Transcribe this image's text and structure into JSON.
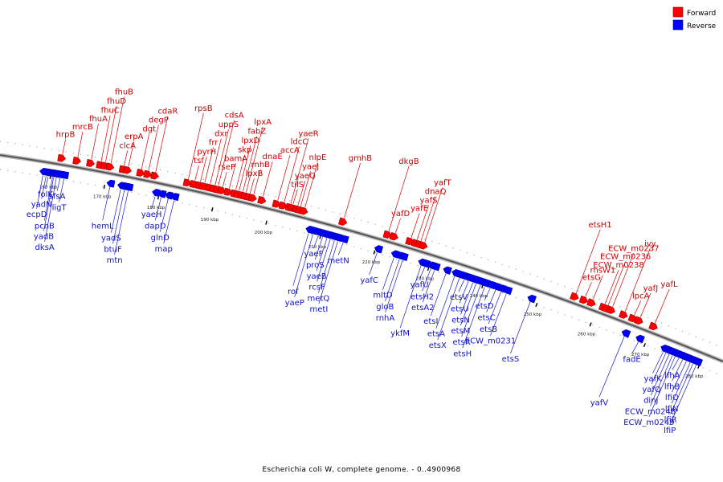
{
  "legend": {
    "forward_label": "Forward",
    "reverse_label": "Reverse",
    "forward_color": "#ff0000",
    "reverse_color": "#0000ff"
  },
  "caption": "Escherichia coli W, complete genome. - 0..4900968",
  "scale_unit": "kbp",
  "scale_ticks": [
    160,
    170,
    180,
    190,
    200,
    210,
    220,
    230,
    240,
    250,
    260,
    270,
    280
  ],
  "forward_genes": [
    {
      "name": "hrpB",
      "kbp": 161.5
    },
    {
      "name": "mrcB",
      "kbp": 164.3
    },
    {
      "name": "fhuA",
      "kbp": 166.8
    },
    {
      "name": "fhuC",
      "kbp": 168.6
    },
    {
      "name": "fhuD",
      "kbp": 169.4
    },
    {
      "name": "fhuB",
      "kbp": 170.4
    },
    {
      "name": "clcA",
      "kbp": 172.8
    },
    {
      "name": "erpA",
      "kbp": 173.6
    },
    {
      "name": "dgt",
      "kbp": 176.0
    },
    {
      "name": "degP",
      "kbp": 177.3
    },
    {
      "name": "cdaR",
      "kbp": 178.6
    },
    {
      "name": "rpsB",
      "kbp": 184.6
    },
    {
      "name": "tsf",
      "kbp": 185.8
    },
    {
      "name": "pyrH",
      "kbp": 186.8
    },
    {
      "name": "frr",
      "kbp": 187.6
    },
    {
      "name": "dxr",
      "kbp": 188.6
    },
    {
      "name": "uppS",
      "kbp": 189.5
    },
    {
      "name": "cdsA",
      "kbp": 190.1
    },
    {
      "name": "rseP",
      "kbp": 190.9
    },
    {
      "name": "bamA",
      "kbp": 192.1
    },
    {
      "name": "skp",
      "kbp": 193.3
    },
    {
      "name": "lpxD",
      "kbp": 193.9
    },
    {
      "name": "fabZ",
      "kbp": 194.6
    },
    {
      "name": "lpxA",
      "kbp": 195.2
    },
    {
      "name": "lpxB",
      "kbp": 195.9
    },
    {
      "name": "rnhB",
      "kbp": 196.6
    },
    {
      "name": "dnaE",
      "kbp": 198.3
    },
    {
      "name": "accA",
      "kbp": 201.0
    },
    {
      "name": "ldcC",
      "kbp": 202.2
    },
    {
      "name": "yaeR",
      "kbp": 203.4
    },
    {
      "name": "tilS",
      "kbp": 203.8
    },
    {
      "name": "yaeQ",
      "kbp": 204.7
    },
    {
      "name": "yaeJ",
      "kbp": 205.2
    },
    {
      "name": "nlpE",
      "kbp": 206.0
    },
    {
      "name": "gmhB",
      "kbp": 213.2
    },
    {
      "name": "dkgB",
      "kbp": 221.4
    },
    {
      "name": "yafD",
      "kbp": 222.6
    },
    {
      "name": "yafE",
      "kbp": 225.5
    },
    {
      "name": "yafS",
      "kbp": 226.6
    },
    {
      "name": "dnaQ",
      "kbp": 227.3
    },
    {
      "name": "yafT",
      "kbp": 228.0
    },
    {
      "name": "etsH1",
      "kbp": 255.8
    },
    {
      "name": "etsG",
      "kbp": 257.5
    },
    {
      "name": "rhsW1",
      "kbp": 258.9
    },
    {
      "name": "ECW_m0238",
      "kbp": 261.1
    },
    {
      "name": "ECW_m0236",
      "kbp": 261.7
    },
    {
      "name": "ECW_m0237",
      "kbp": 262.5
    },
    {
      "name": "ivy",
      "kbp": 264.8
    },
    {
      "name": "lpcA",
      "kbp": 266.5
    },
    {
      "name": "yafJ",
      "kbp": 267.6
    },
    {
      "name": "yafL",
      "kbp": 270.3
    }
  ],
  "reverse_genes": [
    {
      "name": "folK",
      "kbp": 159.6
    },
    {
      "name": "yadN",
      "kbp": 159.2
    },
    {
      "name": "ecpD",
      "kbp": 158.6
    },
    {
      "name": "pcnB",
      "kbp": 160.4
    },
    {
      "name": "yadB",
      "kbp": 160.6
    },
    {
      "name": "dksA",
      "kbp": 161.1
    },
    {
      "name": "sfsA",
      "kbp": 161.8
    },
    {
      "name": "ligT",
      "kbp": 162.5
    },
    {
      "name": "hemL",
      "kbp": 171.0
    },
    {
      "name": "yadS",
      "kbp": 173.0
    },
    {
      "name": "btuF",
      "kbp": 173.7
    },
    {
      "name": "mtn",
      "kbp": 174.4
    },
    {
      "name": "yaeH",
      "kbp": 179.4
    },
    {
      "name": "dapD",
      "kbp": 180.5
    },
    {
      "name": "glnD",
      "kbp": 181.8
    },
    {
      "name": "map",
      "kbp": 182.9
    },
    {
      "name": "rof",
      "kbp": 207.8
    },
    {
      "name": "yaeP",
      "kbp": 208.6
    },
    {
      "name": "yaeF",
      "kbp": 209.6
    },
    {
      "name": "proS",
      "kbp": 210.4
    },
    {
      "name": "yaeB",
      "kbp": 211.2
    },
    {
      "name": "rcsF",
      "kbp": 211.8
    },
    {
      "name": "metQ",
      "kbp": 212.6
    },
    {
      "name": "metI",
      "kbp": 213.2
    },
    {
      "name": "metN",
      "kbp": 214.2
    },
    {
      "name": "yafC",
      "kbp": 220.5
    },
    {
      "name": "mltD",
      "kbp": 223.6
    },
    {
      "name": "gloB",
      "kbp": 224.6
    },
    {
      "name": "rnhA",
      "kbp": 225.2
    },
    {
      "name": "ykfM",
      "kbp": 228.6
    },
    {
      "name": "yafU",
      "kbp": 229.3
    },
    {
      "name": "etsH2",
      "kbp": 230.4
    },
    {
      "name": "etsA2",
      "kbp": 231.1
    },
    {
      "name": "etsI",
      "kbp": 233.2
    },
    {
      "name": "etsA",
      "kbp": 234.8
    },
    {
      "name": "etsX",
      "kbp": 235.7
    },
    {
      "name": "etsV",
      "kbp": 236.6
    },
    {
      "name": "etsU",
      "kbp": 237.4
    },
    {
      "name": "etsN",
      "kbp": 238.2
    },
    {
      "name": "etsM",
      "kbp": 238.8
    },
    {
      "name": "etsR",
      "kbp": 239.6
    },
    {
      "name": "etsH",
      "kbp": 240.4
    },
    {
      "name": "etsD",
      "kbp": 241.4
    },
    {
      "name": "etsC",
      "kbp": 242.4
    },
    {
      "name": "etsB",
      "kbp": 243.4
    },
    {
      "name": "ECW_m0231",
      "kbp": 244.4
    },
    {
      "name": "etsS",
      "kbp": 248.8
    },
    {
      "name": "yafV",
      "kbp": 266.2
    },
    {
      "name": "fadE",
      "kbp": 268.8
    },
    {
      "name": "yafK",
      "kbp": 273.4
    },
    {
      "name": "yafQ",
      "kbp": 273.9
    },
    {
      "name": "dinJ",
      "kbp": 274.5
    },
    {
      "name": "ECW_m0248",
      "kbp": 275.1
    },
    {
      "name": "ECW_m0249",
      "kbp": 275.6
    },
    {
      "name": "lfhA",
      "kbp": 276.3
    },
    {
      "name": "lfhB",
      "kbp": 277.0
    },
    {
      "name": "lfiQ",
      "kbp": 277.7
    },
    {
      "name": "lfiN",
      "kbp": 278.4
    },
    {
      "name": "lfiR",
      "kbp": 278.9
    },
    {
      "name": "lfiP",
      "kbp": 279.5
    }
  ]
}
